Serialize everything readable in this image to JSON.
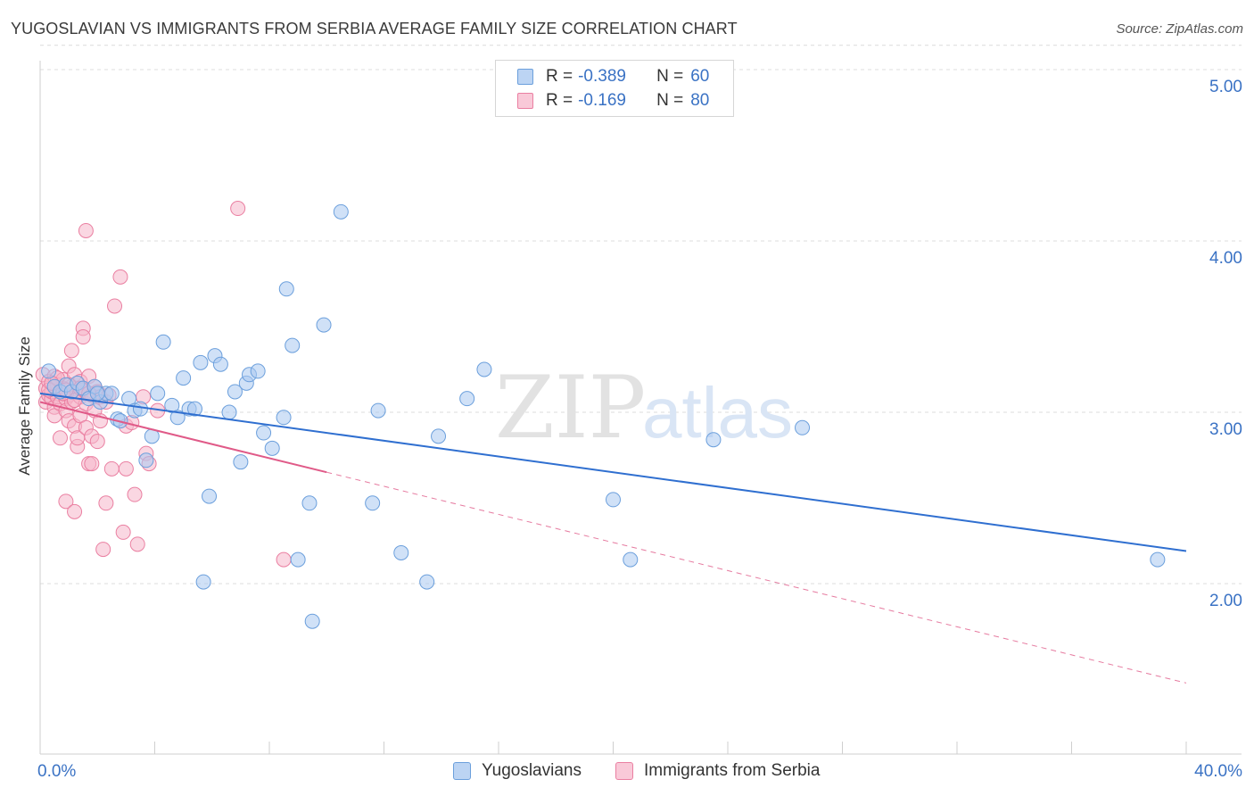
{
  "title": "YUGOSLAVIAN VS IMMIGRANTS FROM SERBIA AVERAGE FAMILY SIZE CORRELATION CHART",
  "source": "Source: ZipAtlas.com",
  "watermark": {
    "zip": "ZIP",
    "atlas": "atlas"
  },
  "legend": {
    "rows": [
      {
        "r_label": "R =",
        "r_value": "-0.389",
        "n_label": "N =",
        "n_value": "60"
      },
      {
        "r_label": "R =",
        "r_value": "-0.169",
        "n_label": "N =",
        "n_value": "80"
      }
    ]
  },
  "bottom_legend": {
    "series1": "Yugoslavians",
    "series2": "Immigrants from Serbia"
  },
  "colors": {
    "blue_fill": "#a9c8f0",
    "blue_stroke": "#6b9fdc",
    "blue_line": "#2f6fd0",
    "pink_fill": "#f6b7cb",
    "pink_stroke": "#ea7fa1",
    "pink_line": "#e05a88",
    "grid": "#dcdcdc",
    "tick_text": "#3a72c4"
  },
  "chart_data": {
    "type": "scatter",
    "title": "YUGOSLAVIAN VS IMMIGRANTS FROM SERBIA AVERAGE FAMILY SIZE CORRELATION CHART",
    "xlabel": "",
    "ylabel": "Average Family Size",
    "xlim": [
      0,
      40
    ],
    "ylim": [
      1.0,
      5.1
    ],
    "x_tick_labels": [
      "0.0%",
      "40.0%"
    ],
    "y_ticks": [
      2.0,
      3.0,
      4.0,
      5.0
    ],
    "y_tick_labels": [
      "2.00",
      "3.00",
      "4.00",
      "5.00"
    ],
    "grid": true,
    "series": [
      {
        "name": "Yugoslavians",
        "r": -0.389,
        "n": 60,
        "trend": {
          "x": [
            0,
            40
          ],
          "y": [
            3.11,
            2.19
          ],
          "dashed_extension": null
        },
        "points": [
          [
            0.3,
            3.24
          ],
          [
            0.5,
            3.15
          ],
          [
            0.7,
            3.12
          ],
          [
            0.9,
            3.16
          ],
          [
            1.1,
            3.12
          ],
          [
            1.3,
            3.17
          ],
          [
            1.5,
            3.14
          ],
          [
            1.7,
            3.08
          ],
          [
            1.9,
            3.15
          ],
          [
            2.1,
            3.06
          ],
          [
            2.3,
            3.11
          ],
          [
            2.5,
            3.11
          ],
          [
            2.7,
            2.96
          ],
          [
            2.8,
            2.95
          ],
          [
            3.1,
            3.08
          ],
          [
            3.3,
            3.01
          ],
          [
            3.5,
            3.02
          ],
          [
            3.7,
            2.72
          ],
          [
            3.9,
            2.86
          ],
          [
            4.1,
            3.11
          ],
          [
            4.3,
            3.41
          ],
          [
            4.6,
            3.04
          ],
          [
            4.8,
            2.97
          ],
          [
            5.0,
            3.2
          ],
          [
            5.2,
            3.02
          ],
          [
            5.4,
            3.02
          ],
          [
            5.6,
            3.29
          ],
          [
            5.7,
            2.01
          ],
          [
            5.9,
            2.51
          ],
          [
            6.1,
            3.33
          ],
          [
            6.3,
            3.28
          ],
          [
            6.6,
            3.0
          ],
          [
            6.8,
            3.12
          ],
          [
            7.0,
            2.71
          ],
          [
            7.2,
            3.17
          ],
          [
            7.3,
            3.22
          ],
          [
            7.6,
            3.24
          ],
          [
            7.8,
            2.88
          ],
          [
            8.1,
            2.79
          ],
          [
            8.5,
            2.97
          ],
          [
            8.6,
            3.72
          ],
          [
            8.8,
            3.39
          ],
          [
            9.0,
            2.14
          ],
          [
            9.4,
            2.47
          ],
          [
            9.5,
            1.78
          ],
          [
            9.9,
            3.51
          ],
          [
            10.5,
            4.17
          ],
          [
            11.6,
            2.47
          ],
          [
            11.8,
            3.01
          ],
          [
            12.6,
            2.18
          ],
          [
            13.5,
            2.01
          ],
          [
            13.9,
            2.86
          ],
          [
            14.9,
            3.08
          ],
          [
            15.5,
            3.25
          ],
          [
            20.0,
            2.49
          ],
          [
            20.6,
            2.14
          ],
          [
            23.5,
            2.84
          ],
          [
            26.6,
            2.91
          ],
          [
            39.0,
            2.14
          ],
          [
            2.0,
            3.11
          ]
        ]
      },
      {
        "name": "Immigrants from Serbia",
        "r": -0.169,
        "n": 80,
        "trend": {
          "x": [
            0,
            10
          ],
          "y": [
            3.06,
            2.65
          ],
          "dashed_extension": {
            "x": [
              10,
              40
            ],
            "y": [
              2.65,
              1.42
            ]
          }
        },
        "points": [
          [
            0.1,
            3.22
          ],
          [
            0.2,
            3.14
          ],
          [
            0.2,
            3.06
          ],
          [
            0.3,
            3.1
          ],
          [
            0.3,
            3.18
          ],
          [
            0.4,
            3.08
          ],
          [
            0.4,
            3.12
          ],
          [
            0.5,
            3.03
          ],
          [
            0.5,
            3.21
          ],
          [
            0.5,
            2.98
          ],
          [
            0.6,
            3.16
          ],
          [
            0.6,
            3.09
          ],
          [
            0.7,
            3.12
          ],
          [
            0.7,
            3.05
          ],
          [
            0.7,
            2.85
          ],
          [
            0.8,
            3.19
          ],
          [
            0.8,
            3.14
          ],
          [
            0.9,
            3.08
          ],
          [
            0.9,
            3.01
          ],
          [
            0.9,
            2.48
          ],
          [
            1.0,
            3.27
          ],
          [
            1.0,
            3.1
          ],
          [
            1.0,
            2.95
          ],
          [
            1.1,
            3.36
          ],
          [
            1.1,
            3.15
          ],
          [
            1.1,
            3.06
          ],
          [
            1.2,
            2.42
          ],
          [
            1.2,
            3.22
          ],
          [
            1.2,
            2.92
          ],
          [
            1.3,
            3.12
          ],
          [
            1.3,
            2.8
          ],
          [
            1.3,
            2.85
          ],
          [
            1.4,
            3.09
          ],
          [
            1.4,
            3.18
          ],
          [
            1.4,
            2.98
          ],
          [
            1.5,
            3.49
          ],
          [
            1.5,
            3.44
          ],
          [
            1.5,
            3.13
          ],
          [
            1.6,
            4.06
          ],
          [
            1.6,
            3.05
          ],
          [
            1.6,
            2.91
          ],
          [
            1.7,
            2.7
          ],
          [
            1.7,
            3.21
          ],
          [
            1.8,
            3.1
          ],
          [
            1.8,
            2.7
          ],
          [
            1.8,
            2.86
          ],
          [
            1.9,
            3.15
          ],
          [
            1.9,
            3.01
          ],
          [
            2.0,
            2.83
          ],
          [
            2.0,
            3.12
          ],
          [
            2.1,
            2.95
          ],
          [
            2.1,
            3.09
          ],
          [
            2.2,
            2.2
          ],
          [
            2.3,
            3.06
          ],
          [
            2.3,
            2.47
          ],
          [
            2.4,
            3.1
          ],
          [
            2.5,
            2.67
          ],
          [
            2.6,
            3.62
          ],
          [
            2.8,
            3.79
          ],
          [
            2.9,
            2.3
          ],
          [
            3.0,
            2.67
          ],
          [
            3.0,
            2.92
          ],
          [
            3.2,
            2.94
          ],
          [
            3.3,
            2.52
          ],
          [
            3.4,
            2.23
          ],
          [
            3.6,
            3.09
          ],
          [
            3.7,
            2.76
          ],
          [
            3.8,
            2.7
          ],
          [
            4.1,
            3.01
          ],
          [
            6.9,
            4.19
          ],
          [
            8.5,
            2.14
          ],
          [
            0.3,
            3.13
          ],
          [
            0.6,
            3.2
          ],
          [
            0.8,
            3.11
          ],
          [
            1.0,
            3.16
          ],
          [
            1.2,
            3.07
          ],
          [
            1.4,
            3.14
          ],
          [
            1.7,
            3.11
          ],
          [
            0.4,
            3.17
          ],
          [
            0.9,
            3.13
          ]
        ]
      }
    ]
  }
}
